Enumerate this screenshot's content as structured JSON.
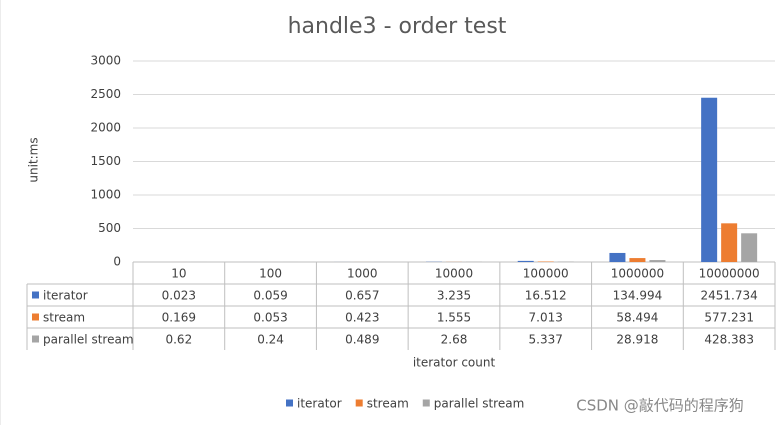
{
  "chart_data": {
    "type": "bar",
    "title": "handle3 - order test",
    "y_label": "unit:ms",
    "x_label": "iterator count",
    "categories": [
      "10",
      "100",
      "1000",
      "10000",
      "100000",
      "1000000",
      "10000000"
    ],
    "series": [
      {
        "name": "iterator",
        "color": "#4472c4",
        "values": [
          0.023,
          0.059,
          0.657,
          3.235,
          16.512,
          134.994,
          2451.734
        ]
      },
      {
        "name": "stream",
        "color": "#ed7d31",
        "values": [
          0.169,
          0.053,
          0.423,
          1.555,
          7.013,
          58.494,
          577.231
        ]
      },
      {
        "name": "parallel stream",
        "color": "#a5a5a5",
        "values": [
          0.62,
          0.24,
          0.489,
          2.68,
          5.337,
          28.918,
          428.383
        ]
      }
    ],
    "ylim": [
      0,
      3000
    ],
    "yticks": [
      0,
      500,
      1000,
      1500,
      2000,
      2500,
      3000
    ],
    "grid": true,
    "legend": "bottom",
    "watermark": "CSDN @敲代码的程序狗"
  }
}
